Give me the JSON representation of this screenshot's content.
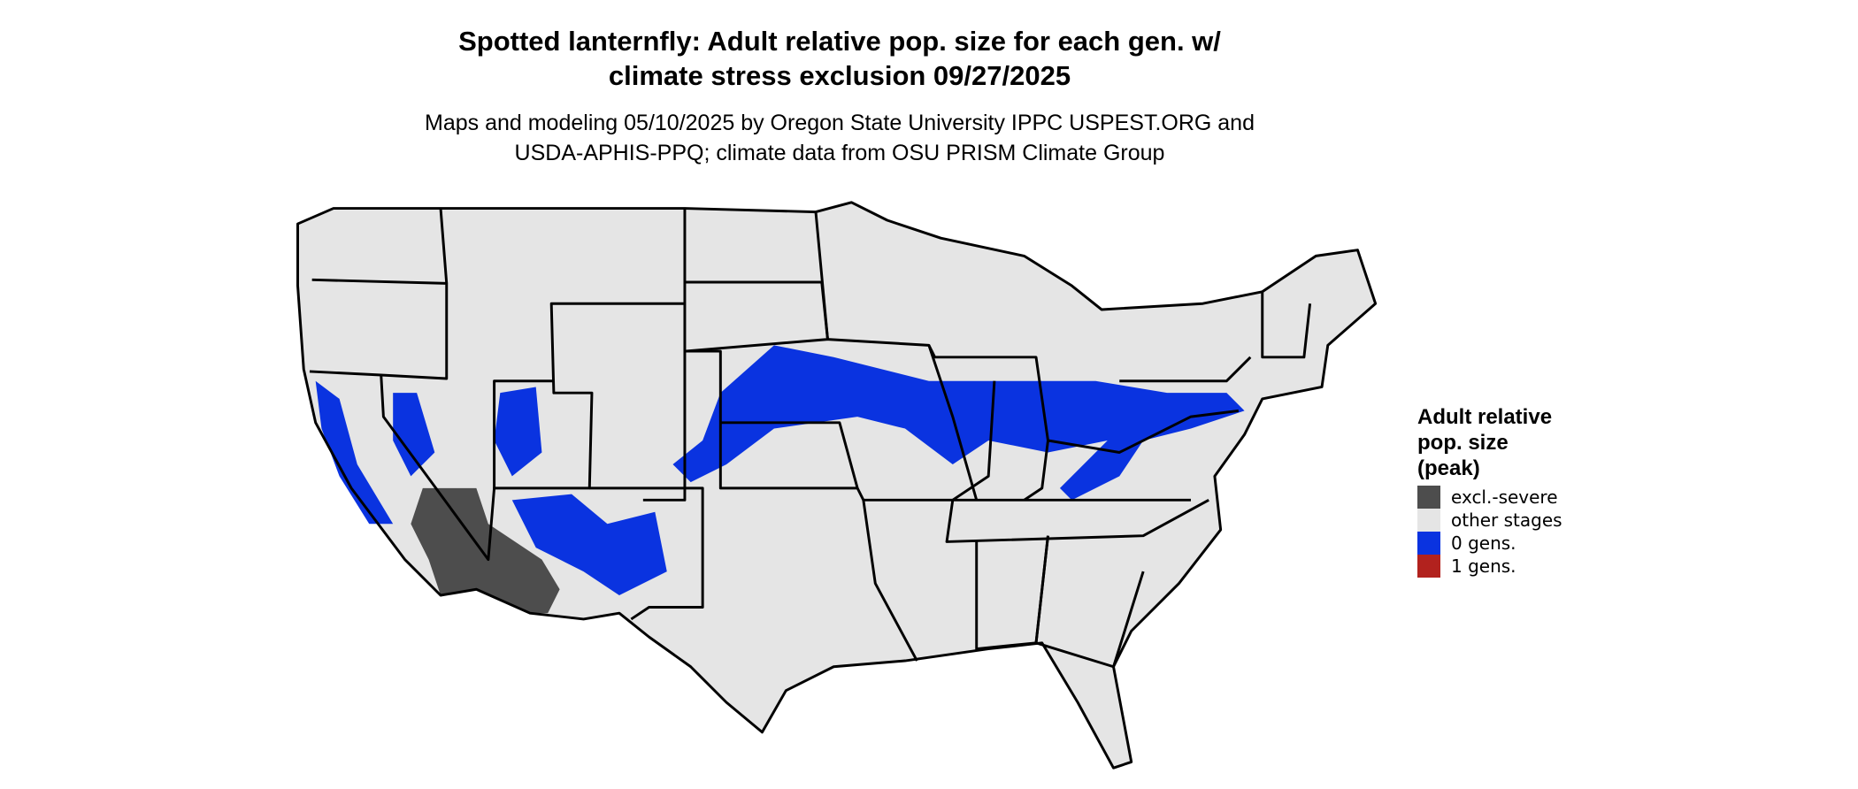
{
  "title": [
    "Spotted lanternfly: Adult relative pop. size for each gen. w/",
    "climate stress exclusion 09/27/2025"
  ],
  "subtitle": [
    "Maps and modeling 05/10/2025 by Oregon State University IPPC USPEST.ORG and",
    "USDA-APHIS-PPQ; climate data from OSU PRISM Climate Group"
  ],
  "legend": {
    "title": [
      "Adult relative",
      "pop. size",
      "(peak)"
    ],
    "items": [
      {
        "label": "excl.-severe",
        "color": "#4d4d4d"
      },
      {
        "label": "other stages",
        "color": "#e5e5e5"
      },
      {
        "label": "0 gens.",
        "color": "#0a33e0"
      },
      {
        "label": "1 gens.",
        "color": "#b2221e"
      }
    ]
  }
}
